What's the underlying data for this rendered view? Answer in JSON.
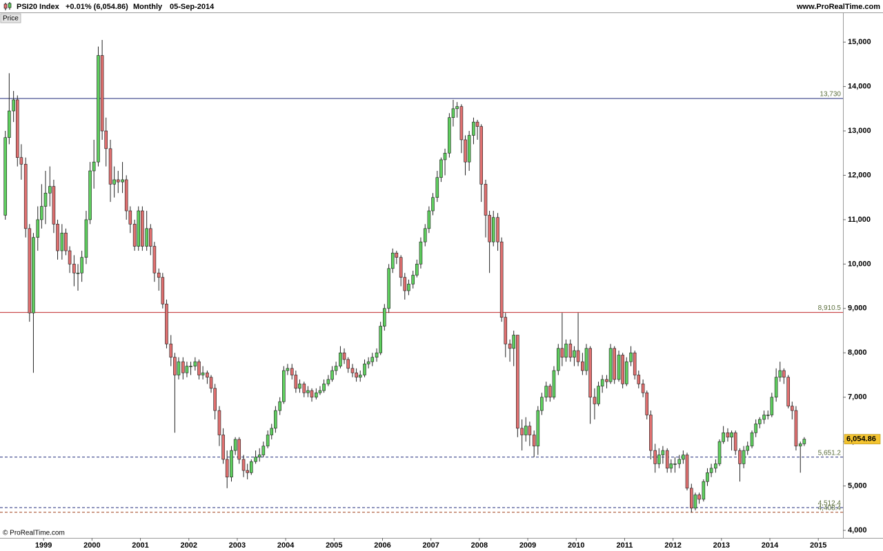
{
  "chart_data": {
    "type": "candlestick",
    "title": "PSI20 Index",
    "change": "+0.01% (6,054.86)",
    "period": "Monthly",
    "date": "05-Sep-2014",
    "source": "www.ProRealTime.com",
    "panel_label": "Price",
    "copyright": "© ProRealTime.com",
    "up_color": "#5fcf5f",
    "down_color": "#e07070",
    "x": [
      1998.21,
      1998.29,
      1998.38,
      1998.46,
      1998.54,
      1998.63,
      1998.71,
      1998.79,
      1998.88,
      1998.96,
      1999.04,
      1999.13,
      1999.21,
      1999.29,
      1999.38,
      1999.46,
      1999.54,
      1999.63,
      1999.71,
      1999.79,
      1999.88,
      1999.96,
      2000.04,
      2000.13,
      2000.21,
      2000.29,
      2000.38,
      2000.46,
      2000.54,
      2000.63,
      2000.71,
      2000.79,
      2000.88,
      2000.96,
      2001.04,
      2001.13,
      2001.21,
      2001.29,
      2001.38,
      2001.46,
      2001.54,
      2001.63,
      2001.71,
      2001.79,
      2001.88,
      2001.96,
      2002.04,
      2002.13,
      2002.21,
      2002.29,
      2002.38,
      2002.46,
      2002.54,
      2002.63,
      2002.71,
      2002.79,
      2002.88,
      2002.96,
      2003.04,
      2003.13,
      2003.21,
      2003.29,
      2003.38,
      2003.46,
      2003.54,
      2003.63,
      2003.71,
      2003.79,
      2003.88,
      2003.96,
      2004.04,
      2004.13,
      2004.21,
      2004.29,
      2004.38,
      2004.46,
      2004.54,
      2004.63,
      2004.71,
      2004.79,
      2004.88,
      2004.96,
      2005.04,
      2005.13,
      2005.21,
      2005.29,
      2005.38,
      2005.46,
      2005.54,
      2005.63,
      2005.71,
      2005.79,
      2005.88,
      2005.96,
      2006.04,
      2006.13,
      2006.21,
      2006.29,
      2006.38,
      2006.46,
      2006.54,
      2006.63,
      2006.71,
      2006.79,
      2006.88,
      2006.96,
      2007.04,
      2007.13,
      2007.21,
      2007.29,
      2007.38,
      2007.46,
      2007.54,
      2007.63,
      2007.71,
      2007.79,
      2007.88,
      2007.96,
      2008.04,
      2008.13,
      2008.21,
      2008.29,
      2008.38,
      2008.46,
      2008.54,
      2008.63,
      2008.71,
      2008.79,
      2008.88,
      2008.96,
      2009.04,
      2009.13,
      2009.21,
      2009.29,
      2009.38,
      2009.46,
      2009.54,
      2009.63,
      2009.71,
      2009.79,
      2009.88,
      2009.96,
      2010.04,
      2010.13,
      2010.21,
      2010.29,
      2010.38,
      2010.46,
      2010.54,
      2010.63,
      2010.71,
      2010.79,
      2010.88,
      2010.96,
      2011.04,
      2011.13,
      2011.21,
      2011.29,
      2011.38,
      2011.46,
      2011.54,
      2011.63,
      2011.71,
      2011.79,
      2011.88,
      2011.96,
      2012.04,
      2012.13,
      2012.21,
      2012.29,
      2012.38,
      2012.46,
      2012.54,
      2012.63,
      2012.71,
      2012.79,
      2012.88,
      2012.96,
      2013.04,
      2013.13,
      2013.21,
      2013.29,
      2013.38,
      2013.46,
      2013.54,
      2013.63,
      2013.71,
      2013.79,
      2013.88,
      2013.96,
      2014.04,
      2014.13,
      2014.21,
      2014.29,
      2014.38,
      2014.46,
      2014.54,
      2014.63,
      2014.71
    ],
    "open": [
      11100,
      12850,
      13450,
      13700,
      12400,
      12250,
      10800,
      8900,
      10600,
      11000,
      11300,
      11600,
      11750,
      10900,
      10300,
      10700,
      10300,
      10000,
      9800,
      9800,
      10150,
      11000,
      12100,
      12300,
      14700,
      13000,
      12600,
      11800,
      11900,
      11850,
      11900,
      11200,
      10900,
      10400,
      11200,
      10400,
      10800,
      10400,
      9800,
      9700,
      9100,
      8200,
      7900,
      7500,
      7800,
      7550,
      7700,
      7700,
      7800,
      7500,
      7550,
      7450,
      7200,
      6700,
      6150,
      5600,
      5200,
      5800,
      6050,
      5600,
      5350,
      5300,
      5550,
      5650,
      5700,
      5900,
      6150,
      6300,
      6700,
      6900,
      7600,
      7650,
      7500,
      7200,
      7300,
      7100,
      7150,
      7000,
      7100,
      7150,
      7300,
      7400,
      7600,
      7700,
      8000,
      7850,
      7650,
      7550,
      7450,
      7500,
      7750,
      7800,
      7900,
      8000,
      8600,
      9000,
      9900,
      10250,
      10150,
      9700,
      9400,
      9550,
      9750,
      10000,
      10500,
      10800,
      11200,
      11500,
      11950,
      12350,
      12500,
      13300,
      13500,
      13550,
      12800,
      12300,
      12900,
      13200,
      13100,
      11800,
      11100,
      10500,
      11050,
      10500,
      8800,
      8200,
      8100,
      8400,
      6300,
      6150,
      6350,
      6150,
      5900,
      6700,
      7000,
      7250,
      7000,
      7600,
      8100,
      7900,
      8200,
      7900,
      8050,
      7800,
      7600,
      8100,
      7000,
      6850,
      7250,
      7400,
      7350,
      8100,
      7400,
      7950,
      7300,
      7800,
      8000,
      7500,
      7300,
      7100,
      6600,
      5800,
      5500,
      5700,
      5800,
      5400,
      5500,
      5500,
      5600,
      5700,
      4950,
      4500,
      4800,
      4700,
      5100,
      5300,
      5400,
      5500,
      6000,
      6200,
      6100,
      6200,
      5800,
      5500,
      5800,
      5900,
      6200,
      6400,
      6500,
      6600,
      6600,
      7000,
      7450,
      7600,
      7450,
      6800,
      6700,
      5900,
      5950
    ],
    "high": [
      13000,
      14300,
      13900,
      13800,
      12700,
      12400,
      10900,
      10700,
      11300,
      11800,
      12100,
      12200,
      11900,
      11000,
      10900,
      10800,
      10400,
      10200,
      10000,
      10300,
      11200,
      12300,
      12800,
      14900,
      15050,
      13300,
      12800,
      12200,
      12100,
      12300,
      12000,
      11300,
      11000,
      11300,
      11300,
      11200,
      10900,
      10500,
      9900,
      9800,
      9200,
      8400,
      8000,
      7900,
      7900,
      7800,
      7800,
      7900,
      7850,
      7700,
      7600,
      7500,
      7300,
      6800,
      6300,
      5800,
      5900,
      6100,
      6100,
      5700,
      5500,
      5600,
      5800,
      5850,
      6000,
      6250,
      6400,
      6800,
      7000,
      7700,
      7750,
      7750,
      7600,
      7400,
      7350,
      7250,
      7200,
      7200,
      7250,
      7400,
      7500,
      7700,
      7800,
      8150,
      8100,
      7900,
      7750,
      7650,
      7600,
      7850,
      7900,
      8000,
      8100,
      8700,
      9100,
      10000,
      10350,
      10300,
      10200,
      9800,
      9650,
      9850,
      10100,
      10600,
      10900,
      11300,
      11600,
      12100,
      12400,
      12600,
      13400,
      13700,
      13650,
      13600,
      12900,
      13000,
      13300,
      13250,
      13150,
      11900,
      11200,
      11200,
      11150,
      10600,
      8900,
      8300,
      8500,
      8400,
      6500,
      6550,
      6450,
      6250,
      6800,
      7100,
      7350,
      7300,
      7700,
      8200,
      8900,
      8300,
      8300,
      8150,
      8900,
      8000,
      8200,
      8150,
      7200,
      7350,
      7500,
      7500,
      8200,
      8150,
      8050,
      8000,
      7900,
      8150,
      8050,
      7600,
      7400,
      7150,
      6700,
      5950,
      5850,
      5900,
      5850,
      5600,
      5650,
      5700,
      5800,
      5750,
      5050,
      4850,
      4850,
      5150,
      5400,
      5500,
      5600,
      6050,
      6350,
      6300,
      6250,
      6250,
      5850,
      5900,
      6000,
      6250,
      6500,
      6550,
      6700,
      6700,
      7100,
      7650,
      7800,
      7650,
      7500,
      6900,
      6800,
      6000,
      6100
    ],
    "low": [
      11000,
      12700,
      13200,
      12200,
      11900,
      10600,
      8700,
      7550,
      10300,
      10800,
      10900,
      11300,
      10700,
      10100,
      10100,
      10200,
      9800,
      9500,
      9400,
      9600,
      10000,
      10900,
      11700,
      12200,
      12800,
      12200,
      11400,
      11500,
      11600,
      11600,
      11000,
      10700,
      10300,
      10300,
      10300,
      10300,
      10200,
      9600,
      9400,
      9000,
      8100,
      7700,
      6200,
      7400,
      7400,
      7450,
      7500,
      7600,
      7400,
      7400,
      7300,
      7100,
      6500,
      5900,
      5500,
      4950,
      5100,
      5700,
      5500,
      5200,
      5150,
      5250,
      5500,
      5550,
      5650,
      5850,
      6050,
      6200,
      6600,
      6850,
      7500,
      7400,
      7100,
      7100,
      7000,
      7000,
      6900,
      6950,
      7050,
      7100,
      7250,
      7350,
      7500,
      7650,
      7750,
      7550,
      7450,
      7350,
      7350,
      7450,
      7650,
      7700,
      7800,
      7950,
      8500,
      8900,
      9800,
      10000,
      9500,
      9200,
      9300,
      9450,
      9700,
      9900,
      10400,
      10700,
      11100,
      11400,
      11850,
      12000,
      12400,
      13100,
      13300,
      12500,
      12000,
      12100,
      12700,
      12800,
      11400,
      10600,
      9800,
      10400,
      10300,
      8700,
      7900,
      7800,
      7700,
      6100,
      5800,
      6000,
      5900,
      5650,
      5700,
      6600,
      6900,
      6900,
      6950,
      7500,
      7700,
      7800,
      7800,
      7700,
      7700,
      7500,
      7500,
      6400,
      6500,
      6800,
      7100,
      7200,
      7300,
      7300,
      7350,
      7200,
      7250,
      7700,
      7400,
      7200,
      7000,
      6500,
      5600,
      5300,
      5400,
      5500,
      5300,
      5300,
      5300,
      5400,
      5500,
      4900,
      4400,
      4450,
      4600,
      4650,
      5000,
      5200,
      5300,
      5450,
      5950,
      6000,
      5800,
      5700,
      5100,
      5400,
      5700,
      5850,
      6100,
      6300,
      6400,
      6500,
      6550,
      6900,
      7350,
      7300,
      6750,
      6500,
      5800,
      5300,
      5900
    ],
    "close": [
      12850,
      13450,
      13700,
      12400,
      12250,
      10800,
      8900,
      10600,
      11000,
      11300,
      11600,
      11750,
      10900,
      10300,
      10700,
      10300,
      10000,
      9800,
      9800,
      10150,
      11000,
      12100,
      12300,
      14700,
      13000,
      12600,
      11800,
      11900,
      11850,
      11900,
      11200,
      10900,
      10400,
      11200,
      10400,
      10800,
      10400,
      9800,
      9700,
      9100,
      8200,
      7900,
      7500,
      7800,
      7550,
      7700,
      7700,
      7800,
      7500,
      7550,
      7450,
      7200,
      6700,
      6150,
      5600,
      5200,
      5800,
      6050,
      5600,
      5350,
      5300,
      5550,
      5650,
      5700,
      5900,
      6150,
      6300,
      6700,
      6900,
      7600,
      7650,
      7500,
      7200,
      7300,
      7100,
      7150,
      7000,
      7100,
      7150,
      7300,
      7400,
      7600,
      7700,
      8000,
      7850,
      7650,
      7550,
      7450,
      7500,
      7750,
      7800,
      7900,
      8000,
      8600,
      9000,
      9900,
      10250,
      10150,
      9700,
      9400,
      9550,
      9750,
      10000,
      10500,
      10800,
      11200,
      11500,
      11950,
      12350,
      12500,
      13300,
      13500,
      13550,
      12800,
      12300,
      12900,
      13200,
      13100,
      11800,
      11100,
      10500,
      11050,
      10500,
      8800,
      8200,
      8100,
      8400,
      6300,
      6150,
      6350,
      6150,
      5900,
      6700,
      7000,
      7250,
      7000,
      7600,
      8100,
      7900,
      8200,
      7900,
      8050,
      7800,
      7600,
      8100,
      7000,
      6850,
      7250,
      7400,
      7350,
      8100,
      7400,
      7950,
      7300,
      7800,
      8000,
      7500,
      7300,
      7100,
      6600,
      5800,
      5500,
      5700,
      5800,
      5400,
      5500,
      5500,
      5600,
      5700,
      4950,
      4500,
      4800,
      4700,
      5100,
      5300,
      5400,
      5500,
      6000,
      6200,
      6100,
      6200,
      5800,
      5500,
      5800,
      5900,
      6200,
      6400,
      6500,
      6600,
      6600,
      7000,
      7450,
      7600,
      7450,
      6800,
      6700,
      5900,
      5950,
      6054.86
    ],
    "xlim": [
      1998.1,
      2015.51
    ],
    "xticks": [
      1999,
      2000,
      2001,
      2002,
      2003,
      2004,
      2005,
      2006,
      2007,
      2008,
      2009,
      2010,
      2011,
      2012,
      2013,
      2014,
      2015
    ],
    "ylim": [
      3830,
      15670
    ],
    "yticks": [
      {
        "value": 4000,
        "label": "4,000"
      },
      {
        "value": 5000,
        "label": "5,000"
      },
      {
        "value": 6000,
        "label": "6,000"
      },
      {
        "value": 7000,
        "label": "7,000"
      },
      {
        "value": 8000,
        "label": "8,000"
      },
      {
        "value": 9000,
        "label": "9,000"
      },
      {
        "value": 10000,
        "label": "10,000"
      },
      {
        "value": 11000,
        "label": "11,000"
      },
      {
        "value": 12000,
        "label": "12,000"
      },
      {
        "value": 13000,
        "label": "13,000"
      },
      {
        "value": 14000,
        "label": "14,000"
      },
      {
        "value": 15000,
        "label": "15,000"
      }
    ],
    "levels": [
      {
        "value": 13730,
        "label": "13,730",
        "color": "#1f2a7a",
        "style": "solid"
      },
      {
        "value": 8910.5,
        "label": "8,910.5",
        "color": "#c0282a",
        "style": "solid"
      },
      {
        "value": 5651.2,
        "label": "5,651.2",
        "color": "#1f2a7a",
        "style": "dashed"
      },
      {
        "value": 4512.4,
        "label": "4,512.4",
        "color": "#1f2a7a",
        "style": "dashed"
      },
      {
        "value": 4408.4,
        "label": "4,408.4",
        "color": "#a0401a",
        "style": "dashed"
      }
    ],
    "last_price": {
      "value": 6054.86,
      "label": "6,054.86",
      "color": "#f4c430"
    }
  }
}
